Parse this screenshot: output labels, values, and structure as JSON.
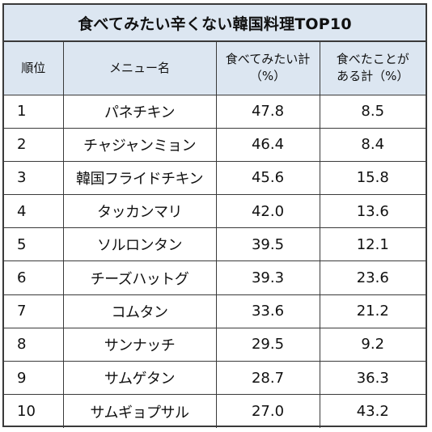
{
  "chart_data": {
    "type": "table",
    "title": "食べてみたい辛くない韓国料理TOP10",
    "headers": {
      "rank": "順位",
      "menu": "メニュー名",
      "want_line1": "食べてみたい計",
      "want_line2": "（%）",
      "ate_line1": "食べたことが",
      "ate_line2": "ある計（%）"
    },
    "rows": [
      {
        "rank": "1",
        "menu": "パネチキン",
        "want": "47.8",
        "ate": "8.5"
      },
      {
        "rank": "2",
        "menu": "チャジャンミョン",
        "want": "46.4",
        "ate": "8.4"
      },
      {
        "rank": "3",
        "menu": "韓国フライドチキン",
        "want": "45.6",
        "ate": "15.8"
      },
      {
        "rank": "4",
        "menu": "タッカンマリ",
        "want": "42.0",
        "ate": "13.6"
      },
      {
        "rank": "5",
        "menu": "ソルロンタン",
        "want": "39.5",
        "ate": "12.1"
      },
      {
        "rank": "6",
        "menu": "チーズハットグ",
        "want": "39.3",
        "ate": "23.6"
      },
      {
        "rank": "7",
        "menu": "コムタン",
        "want": "33.6",
        "ate": "21.2"
      },
      {
        "rank": "8",
        "menu": "サンナッチ",
        "want": "29.5",
        "ate": "9.2"
      },
      {
        "rank": "9",
        "menu": "サムゲタン",
        "want": "28.7",
        "ate": "36.3"
      },
      {
        "rank": "10",
        "menu": "サムギョプサル",
        "want": "27.0",
        "ate": "43.2"
      }
    ]
  }
}
